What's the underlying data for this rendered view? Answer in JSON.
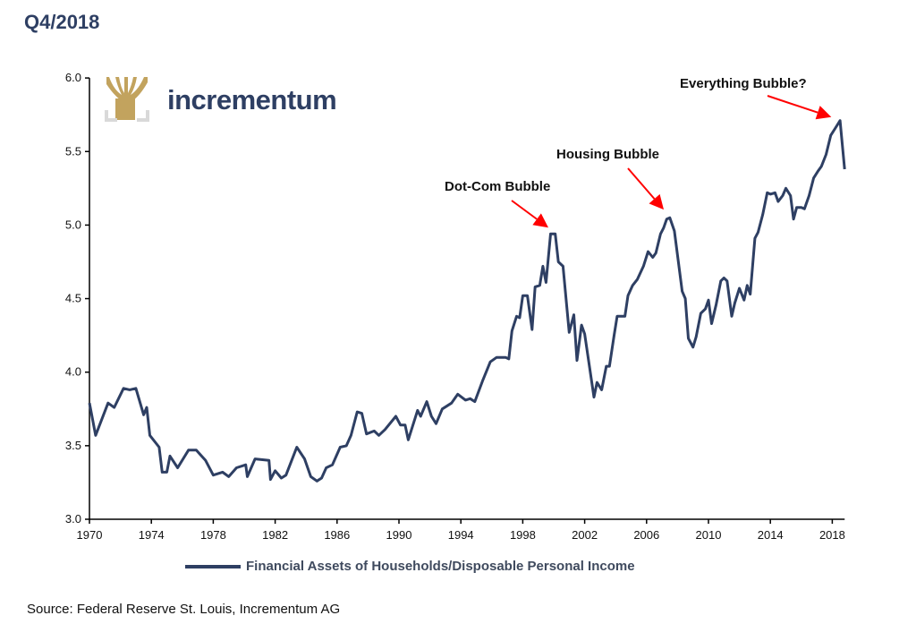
{
  "title": "Q4/2018",
  "logo": {
    "text": "incrementum",
    "colors": {
      "tree": "#c2a35e",
      "frame": "#d9d9d9",
      "text": "#2e3f63"
    }
  },
  "source": "Source: Federal Reserve St. Louis, Incrementum AG",
  "chart_data": {
    "type": "line",
    "title": "",
    "xlabel": "",
    "ylabel": "",
    "xlim": [
      1970,
      2018.8
    ],
    "ylim": [
      3.0,
      6.0
    ],
    "x_ticks": [
      "1970",
      "1974",
      "1978",
      "1982",
      "1986",
      "1990",
      "1994",
      "1998",
      "2002",
      "2006",
      "2010",
      "2014",
      "2018"
    ],
    "y_ticks": [
      "3.0",
      "3.5",
      "4.0",
      "4.5",
      "5.0",
      "5.5",
      "6.0"
    ],
    "grid": false,
    "legend_position": "bottom",
    "series": [
      {
        "name": "Financial Assets of Households/Disposable Personal Income",
        "color": "#2e3f63",
        "x": [
          1970.0,
          1970.4,
          1971.2,
          1971.6,
          1972.2,
          1972.6,
          1973.0,
          1973.5,
          1973.7,
          1973.9,
          1974.5,
          1974.7,
          1975.0,
          1975.2,
          1975.7,
          1976.4,
          1976.9,
          1977.5,
          1978.0,
          1978.6,
          1979.0,
          1979.5,
          1980.1,
          1980.2,
          1980.7,
          1981.6,
          1981.7,
          1982.0,
          1982.4,
          1982.7,
          1983.4,
          1983.9,
          1984.3,
          1984.7,
          1985.0,
          1985.3,
          1985.7,
          1986.2,
          1986.6,
          1986.9,
          1987.3,
          1987.6,
          1987.9,
          1988.4,
          1988.7,
          1989.1,
          1989.8,
          1990.1,
          1990.4,
          1990.6,
          1991.2,
          1991.4,
          1991.8,
          1992.1,
          1992.4,
          1992.8,
          1993.4,
          1993.8,
          1994.3,
          1994.6,
          1994.9,
          1995.4,
          1995.9,
          1996.3,
          1996.9,
          1997.1,
          1997.3,
          1997.6,
          1997.8,
          1998.0,
          1998.3,
          1998.6,
          1998.8,
          1999.1,
          1999.3,
          1999.5,
          1999.8,
          2000.1,
          2000.3,
          2000.6,
          2001.0,
          2001.3,
          2001.5,
          2001.8,
          2002.0,
          2002.6,
          2002.8,
          2003.1,
          2003.4,
          2003.6,
          2003.9,
          2004.1,
          2004.6,
          2004.8,
          2005.1,
          2005.4,
          2005.8,
          2006.1,
          2006.4,
          2006.6,
          2006.9,
          2007.1,
          2007.3,
          2007.5,
          2007.8,
          2008.3,
          2008.5,
          2008.7,
          2009.0,
          2009.2,
          2009.5,
          2009.8,
          2010.0,
          2010.2,
          2010.5,
          2010.8,
          2011.0,
          2011.2,
          2011.5,
          2011.7,
          2012.0,
          2012.3,
          2012.5,
          2012.7,
          2013.0,
          2013.2,
          2013.5,
          2013.8,
          2014.0,
          2014.3,
          2014.5,
          2014.8,
          2015.0,
          2015.3,
          2015.5,
          2015.7,
          2016.0,
          2016.2,
          2016.5,
          2016.8,
          2017.1,
          2017.3,
          2017.6,
          2017.9,
          2018.2,
          2018.5,
          2018.8
        ],
        "values": [
          3.79,
          3.57,
          3.79,
          3.76,
          3.89,
          3.88,
          3.89,
          3.71,
          3.76,
          3.57,
          3.49,
          3.32,
          3.32,
          3.43,
          3.35,
          3.47,
          3.47,
          3.4,
          3.3,
          3.32,
          3.29,
          3.35,
          3.37,
          3.29,
          3.41,
          3.4,
          3.27,
          3.33,
          3.28,
          3.3,
          3.49,
          3.41,
          3.29,
          3.26,
          3.28,
          3.35,
          3.37,
          3.49,
          3.5,
          3.57,
          3.73,
          3.72,
          3.58,
          3.6,
          3.57,
          3.61,
          3.7,
          3.64,
          3.64,
          3.54,
          3.74,
          3.7,
          3.8,
          3.7,
          3.65,
          3.75,
          3.79,
          3.85,
          3.81,
          3.82,
          3.8,
          3.94,
          4.07,
          4.1,
          4.1,
          4.09,
          4.28,
          4.38,
          4.37,
          4.52,
          4.52,
          4.29,
          4.58,
          4.59,
          4.72,
          4.61,
          4.94,
          4.94,
          4.75,
          4.72,
          4.27,
          4.39,
          4.08,
          4.32,
          4.26,
          3.83,
          3.93,
          3.88,
          4.04,
          4.04,
          4.25,
          4.38,
          4.38,
          4.52,
          4.59,
          4.63,
          4.72,
          4.82,
          4.78,
          4.81,
          4.94,
          4.98,
          5.04,
          5.05,
          4.96,
          4.55,
          4.5,
          4.23,
          4.17,
          4.24,
          4.4,
          4.43,
          4.49,
          4.33,
          4.46,
          4.62,
          4.64,
          4.62,
          4.38,
          4.47,
          4.57,
          4.49,
          4.59,
          4.53,
          4.91,
          4.95,
          5.07,
          5.22,
          5.21,
          5.22,
          5.16,
          5.2,
          5.25,
          5.2,
          5.04,
          5.12,
          5.12,
          5.11,
          5.2,
          5.32,
          5.37,
          5.4,
          5.48,
          5.61,
          5.66,
          5.71,
          5.38
        ]
      }
    ],
    "annotations": [
      {
        "text": "Dot-Com Bubble",
        "x": 2000.0,
        "y": 4.94,
        "arrow_color": "#ff0000"
      },
      {
        "text": "Housing Bubble",
        "x": 2007.4,
        "y": 5.05,
        "arrow_color": "#ff0000"
      },
      {
        "text": "Everything Bubble?",
        "x": 2018.4,
        "y": 5.71,
        "arrow_color": "#ff0000"
      }
    ]
  }
}
